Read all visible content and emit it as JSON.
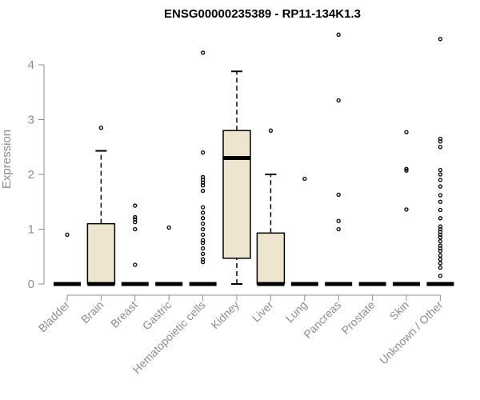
{
  "chart_data": {
    "type": "box",
    "title": "ENSG00000235389 - RP11-134K1.3",
    "xlabel": "",
    "ylabel": "Expression",
    "ylim": [
      0,
      4.6
    ],
    "yticks": [
      0,
      1,
      2,
      3,
      4
    ],
    "grid": false,
    "box_fill": "#ede5cd",
    "categories": [
      "Bladder",
      "Brain",
      "Breast",
      "Gastric",
      "Hematopoietic cells",
      "Kidney",
      "Liver",
      "Lung",
      "Pancreas",
      "Prostate",
      "Skin",
      "Unknown / Other"
    ],
    "boxes": [
      {
        "category": "Bladder",
        "whisker_low": 0,
        "q1": 0,
        "median": 0,
        "q3": 0,
        "whisker_high": 0,
        "outliers": [
          0.9
        ]
      },
      {
        "category": "Brain",
        "whisker_low": 0,
        "q1": 0,
        "median": 0,
        "q3": 1.1,
        "whisker_high": 2.43,
        "outliers": [
          2.85
        ]
      },
      {
        "category": "Breast",
        "whisker_low": 0,
        "q1": 0,
        "median": 0,
        "q3": 0,
        "whisker_high": 0,
        "outliers": [
          0.35,
          1.0,
          1.13,
          1.18,
          1.22,
          1.43
        ]
      },
      {
        "category": "Gastric",
        "whisker_low": 0,
        "q1": 0,
        "median": 0,
        "q3": 0,
        "whisker_high": 0,
        "outliers": [
          1.03
        ]
      },
      {
        "category": "Hematopoietic cells",
        "whisker_low": 0,
        "q1": 0,
        "median": 0,
        "q3": 0,
        "whisker_high": 0,
        "outliers": [
          0.4,
          0.45,
          0.55,
          0.65,
          0.75,
          0.8,
          0.9,
          1.0,
          1.1,
          1.2,
          1.3,
          1.4,
          1.7,
          1.8,
          1.85,
          1.9,
          1.95,
          2.4,
          4.22
        ]
      },
      {
        "category": "Kidney",
        "whisker_low": 0,
        "q1": 0.47,
        "median": 2.3,
        "q3": 2.8,
        "whisker_high": 3.88,
        "outliers": []
      },
      {
        "category": "Liver",
        "whisker_low": 0,
        "q1": 0,
        "median": 0,
        "q3": 0.93,
        "whisker_high": 2.0,
        "outliers": [
          2.8
        ]
      },
      {
        "category": "Lung",
        "whisker_low": 0,
        "q1": 0,
        "median": 0,
        "q3": 0,
        "whisker_high": 0,
        "outliers": [
          1.92
        ]
      },
      {
        "category": "Pancreas",
        "whisker_low": 0,
        "q1": 0,
        "median": 0,
        "q3": 0,
        "whisker_high": 0,
        "outliers": [
          1.0,
          1.15,
          1.63,
          3.35,
          4.55
        ]
      },
      {
        "category": "Prostate",
        "whisker_low": 0,
        "q1": 0,
        "median": 0,
        "q3": 0,
        "whisker_high": 0,
        "outliers": []
      },
      {
        "category": "Skin",
        "whisker_low": 0,
        "q1": 0,
        "median": 0,
        "q3": 0,
        "whisker_high": 0,
        "outliers": [
          1.36,
          2.07,
          2.1,
          2.77
        ]
      },
      {
        "category": "Unknown / Other",
        "whisker_low": 0,
        "q1": 0,
        "median": 0,
        "q3": 0,
        "whisker_high": 0,
        "outliers": [
          0.15,
          0.3,
          0.38,
          0.45,
          0.52,
          0.6,
          0.65,
          0.7,
          0.78,
          0.85,
          0.9,
          0.95,
          1.0,
          1.05,
          1.2,
          1.35,
          1.5,
          1.62,
          1.78,
          1.9,
          2.0,
          2.08,
          2.5,
          2.6,
          2.65,
          4.47
        ]
      }
    ]
  }
}
